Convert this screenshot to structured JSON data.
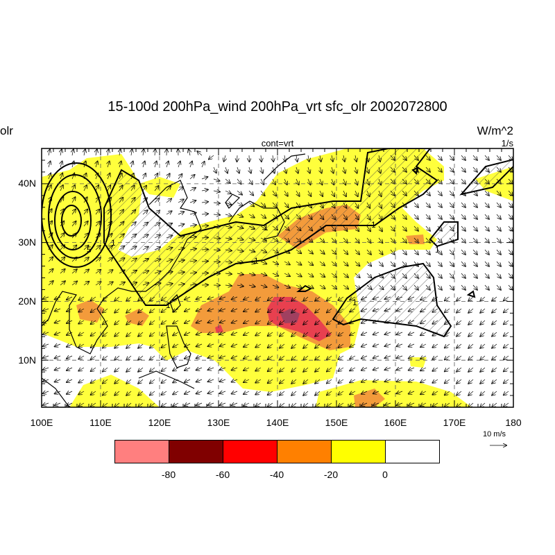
{
  "title": "15-100d 200hPa_wind 200hPa_vrt sfc_olr 2002072800",
  "left_label": "olr",
  "right_units_fill": "W/m^2",
  "right_units_contour": "1/s",
  "center_label": "cont=vrt",
  "x_axis": {
    "ticks": [
      "100E",
      "110E",
      "120E",
      "130E",
      "140E",
      "150E",
      "160E",
      "170E",
      "180"
    ],
    "range_deg": [
      100,
      180
    ]
  },
  "y_axis": {
    "ticks": [
      "10N",
      "20N",
      "30N",
      "40N"
    ],
    "range_deg": [
      2,
      46
    ]
  },
  "contour_labels": [
    "5",
    "1",
    "1",
    "1",
    "1",
    "1",
    "1",
    "1"
  ],
  "legend": {
    "labels": [
      "-80",
      "-60",
      "-40",
      "-20",
      "0"
    ],
    "colors": [
      "#ff7f7f",
      "#800000",
      "#ff0000",
      "#ff8000",
      "#ffff00",
      "#ffffff"
    ]
  },
  "reference_vector": {
    "label": "10 m/s"
  },
  "colors": {
    "yellow": "#ffff3c",
    "orange": "#f39b3b",
    "red": "#e8404f",
    "dark": "#a04060",
    "vector": "#000000"
  }
}
